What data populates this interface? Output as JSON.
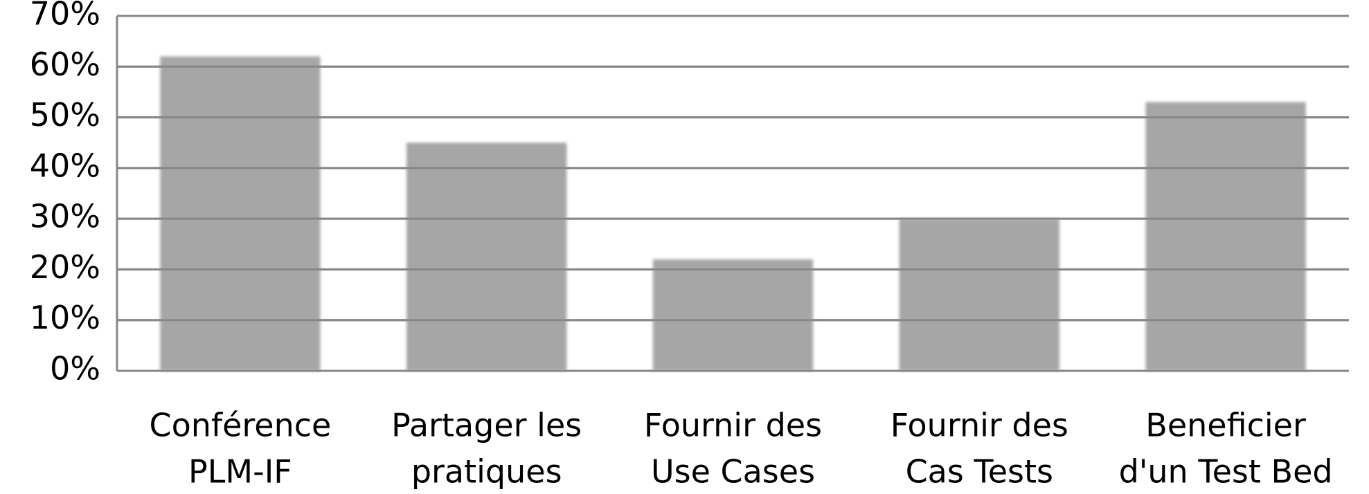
{
  "chart_data": {
    "type": "bar",
    "categories": [
      [
        "Conférence",
        "PLM-IF"
      ],
      [
        "Partager les",
        "pratiques"
      ],
      [
        "Fournir des",
        "Use Cases"
      ],
      [
        "Fournir des",
        "Cas Tests"
      ],
      [
        "Beneficier",
        "d'un Test Bed"
      ]
    ],
    "values": [
      62,
      45,
      22,
      30,
      53
    ],
    "color": "#a6a6a6",
    "ylim": [
      0,
      70
    ],
    "yticks": [
      {
        "value": 0,
        "label": "0%"
      },
      {
        "value": 10,
        "label": "10%"
      },
      {
        "value": 20,
        "label": "20%"
      },
      {
        "value": 30,
        "label": "30%"
      },
      {
        "value": 40,
        "label": "40%"
      },
      {
        "value": 50,
        "label": "50%"
      },
      {
        "value": 60,
        "label": "60%"
      },
      {
        "value": 70,
        "label": "70%"
      }
    ],
    "grid": true
  }
}
